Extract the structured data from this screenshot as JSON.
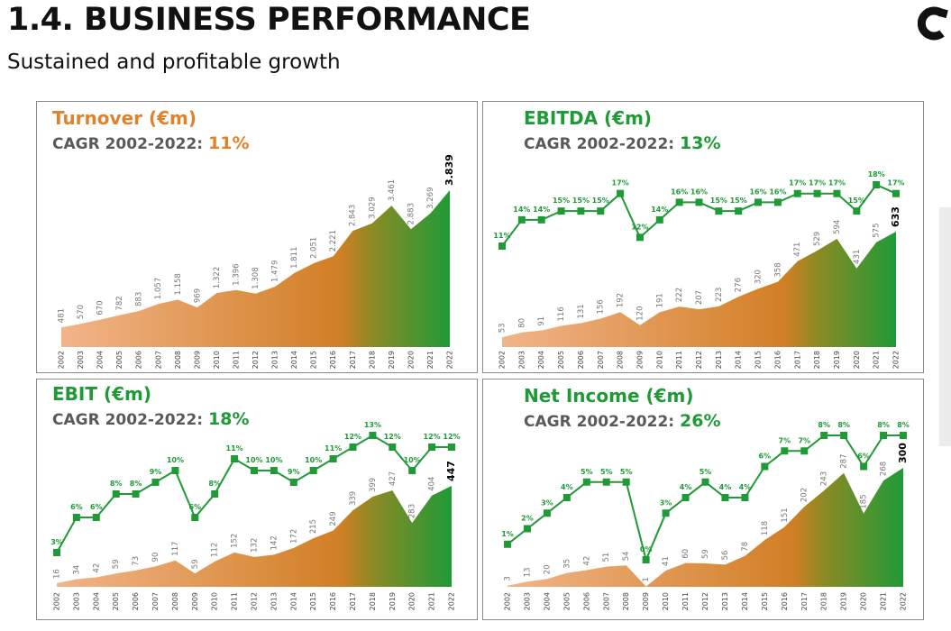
{
  "header": {
    "title": "1.4. BUSINESS PERFORMANCE",
    "subtitle": "Sustained and profitable growth"
  },
  "colors": {
    "orange": "#e0822c",
    "green": "#1f9a37",
    "light_orange": "#f2b48a",
    "gray_text": "#5a5a5a"
  },
  "panels": [
    {
      "title": "Turnover (€m)",
      "cagr_label": "CAGR 2002-2022:",
      "cagr_value": "11%",
      "title_color": "#e0822c"
    },
    {
      "title": "EBITDA (€m)",
      "cagr_label": "CAGR 2002-2022:",
      "cagr_value": "13%",
      "title_color": "#1f9a37"
    },
    {
      "title": "EBIT (€m)",
      "cagr_label": "CAGR 2002-2022:",
      "cagr_value": "18%",
      "title_color": "#1f9a37"
    },
    {
      "title": "Net Income (€m)",
      "cagr_label": "CAGR 2002-2022:",
      "cagr_value": "26%",
      "title_color": "#1f9a37"
    }
  ],
  "chart_data": [
    {
      "type": "area",
      "title": "Turnover (€m)",
      "categories": [
        "2002",
        "2003",
        "2004",
        "2005",
        "2006",
        "2007",
        "2008",
        "2009",
        "2010",
        "2011",
        "2012",
        "2013",
        "2014",
        "2015",
        "2016",
        "2017",
        "2018",
        "2019",
        "2020",
        "2021",
        "2022"
      ],
      "values": [
        481,
        570,
        670,
        782,
        883,
        1057,
        1158,
        969,
        1322,
        1396,
        1308,
        1479,
        1811,
        2051,
        2221,
        2843,
        3029,
        3461,
        2883,
        3269,
        3839
      ],
      "value_labels": [
        "481",
        "570",
        "670",
        "782",
        "883",
        "1.057",
        "1.158",
        "969",
        "1.322",
        "1.396",
        "1.308",
        "1.479",
        "1.811",
        "2.051",
        "2.221",
        "2.843",
        "3.029",
        "3.461",
        "2.883",
        "3.269",
        "3.839"
      ]
    },
    {
      "type": "area",
      "title": "EBITDA (€m)",
      "categories": [
        "2002",
        "2003",
        "2004",
        "2005",
        "2006",
        "2007",
        "2008",
        "2009",
        "2010",
        "2011",
        "2012",
        "2013",
        "2014",
        "2015",
        "2016",
        "2017",
        "2018",
        "2019",
        "2020",
        "2021",
        "2022"
      ],
      "values": [
        53,
        80,
        91,
        116,
        131,
        156,
        192,
        120,
        191,
        222,
        207,
        223,
        276,
        320,
        358,
        471,
        529,
        594,
        431,
        575,
        633
      ],
      "value_labels": [
        "53",
        "80",
        "91",
        "116",
        "131",
        "156",
        "192",
        "120",
        "191",
        "222",
        "207",
        "223",
        "276",
        "320",
        "358",
        "471",
        "529",
        "594",
        "431",
        "575",
        "633"
      ],
      "margin_series": {
        "name": "",
        "values": [
          11,
          14,
          14,
          15,
          15,
          15,
          17,
          12,
          14,
          16,
          16,
          15,
          15,
          16,
          16,
          17,
          17,
          17,
          15,
          18,
          17
        ],
        "labels": [
          "11%",
          "14%",
          "14%",
          "15%",
          "15%",
          "15%",
          "17%",
          "12%",
          "14%",
          "16%",
          "16%",
          "15%",
          "15%",
          "16%",
          "16%",
          "17%",
          "17%",
          "17%",
          "15%",
          "18%",
          "17%"
        ]
      }
    },
    {
      "type": "area",
      "title": "EBIT (€m)",
      "categories": [
        "2002",
        "2003",
        "2004",
        "2005",
        "2006",
        "2007",
        "2008",
        "2009",
        "2010",
        "2011",
        "2012",
        "2013",
        "2014",
        "2015",
        "2016",
        "2017",
        "2018",
        "2019",
        "2020",
        "2021",
        "2022"
      ],
      "values": [
        16,
        34,
        42,
        59,
        73,
        90,
        117,
        59,
        112,
        152,
        132,
        142,
        172,
        215,
        249,
        339,
        399,
        427,
        283,
        404,
        447
      ],
      "value_labels": [
        "16",
        "34",
        "42",
        "59",
        "73",
        "90",
        "117",
        "59",
        "112",
        "152",
        "132",
        "142",
        "172",
        "215",
        "249",
        "339",
        "399",
        "427",
        "283",
        "404",
        "447"
      ],
      "margin_series": {
        "name": "",
        "values": [
          3,
          6,
          6,
          8,
          8,
          9,
          10,
          6,
          8,
          11,
          10,
          10,
          9,
          10,
          11,
          12,
          13,
          12,
          10,
          12,
          12
        ],
        "labels": [
          "3%",
          "6%",
          "6%",
          "8%",
          "8%",
          "9%",
          "10%",
          "6%",
          "8%",
          "11%",
          "10%",
          "10%",
          "9%",
          "10%",
          "11%",
          "12%",
          "13%",
          "12%",
          "10%",
          "12%",
          "12%"
        ]
      }
    },
    {
      "type": "area",
      "title": "Net Income (€m)",
      "categories": [
        "2002",
        "2003",
        "2004",
        "2005",
        "2006",
        "2007",
        "2008",
        "2009",
        "2010",
        "2011",
        "2012",
        "2013",
        "2014",
        "2015",
        "2016",
        "2017",
        "2018",
        "2019",
        "2020",
        "2021",
        "2022"
      ],
      "values": [
        3,
        13,
        20,
        35,
        42,
        51,
        54,
        1,
        41,
        60,
        59,
        56,
        78,
        118,
        151,
        202,
        243,
        287,
        185,
        268,
        300
      ],
      "value_labels": [
        "3",
        "13",
        "20",
        "35",
        "42",
        "51",
        "54",
        "1",
        "41",
        "60",
        "59",
        "56",
        "78",
        "118",
        "151",
        "202",
        "243",
        "287",
        "185",
        "268",
        "300"
      ],
      "margin_series": {
        "name": "",
        "values": [
          1,
          2,
          3,
          4,
          5,
          5,
          5,
          0,
          3,
          4,
          5,
          4,
          4,
          6,
          7,
          7,
          8,
          8,
          6,
          8,
          8
        ],
        "labels": [
          "1%",
          "2%",
          "3%",
          "4%",
          "5%",
          "5%",
          "5%",
          "0%",
          "3%",
          "4%",
          "5%",
          "4%",
          "4%",
          "6%",
          "7%",
          "7%",
          "8%",
          "8%",
          "6%",
          "8%",
          "8%"
        ]
      }
    }
  ]
}
